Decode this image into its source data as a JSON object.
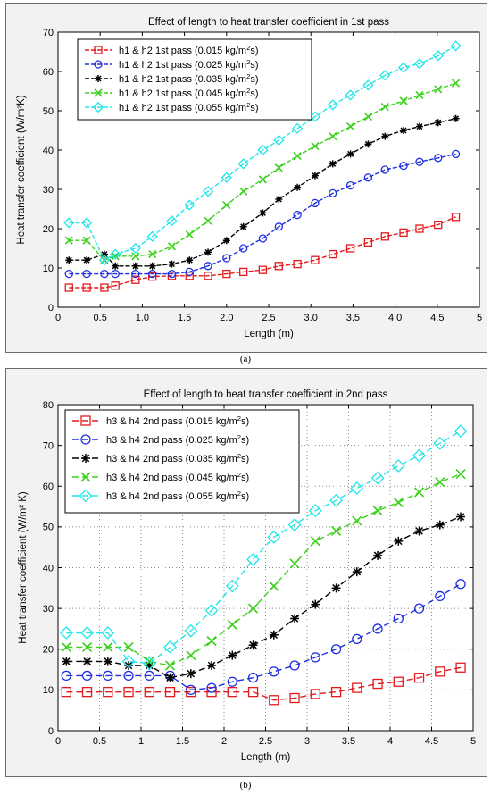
{
  "chart_data": [
    {
      "type": "line",
      "title": "Effect of length to heat transfer coefficient in 1st pass",
      "xlabel": "Length (m)",
      "ylabel": "Heat transfer coefficient (W/m²K)",
      "xlim": [
        0,
        5
      ],
      "ylim": [
        0,
        70
      ],
      "xticks": [
        "0",
        "0.5",
        "1.0",
        "1.5",
        "2.0",
        "2.5",
        "3.0",
        "3.5",
        "4.0",
        "4.5",
        "5"
      ],
      "xtick_values": [
        0,
        0.5,
        1.0,
        1.5,
        2.0,
        2.5,
        3.0,
        3.5,
        4.0,
        4.5,
        5
      ],
      "yticks": [
        0,
        10,
        20,
        30,
        40,
        50,
        60,
        70
      ],
      "grid": false,
      "legend_position": "top-left",
      "x": [
        0.13,
        0.34,
        0.55,
        0.68,
        0.92,
        1.12,
        1.35,
        1.56,
        1.78,
        2.0,
        2.2,
        2.43,
        2.62,
        2.84,
        3.05,
        3.26,
        3.47,
        3.68,
        3.88,
        4.1,
        4.29,
        4.51,
        4.72
      ],
      "series": [
        {
          "name": "h1 & h2 1st pass (0.015 kg/m²s)",
          "color": "#e41a1c",
          "marker": "square",
          "values": [
            5,
            5,
            5,
            5.5,
            7,
            7.8,
            8,
            8,
            8,
            8.5,
            9,
            9.5,
            10.5,
            11,
            12,
            13.5,
            15,
            16.5,
            18,
            19,
            20,
            21,
            23
          ]
        },
        {
          "name": "h1 & h2 1st pass (0.025 kg/m²s)",
          "color": "#1f2fe0",
          "marker": "circle",
          "values": [
            8.5,
            8.5,
            8.5,
            8.5,
            8.5,
            8.5,
            8.5,
            9,
            10.5,
            12.5,
            15,
            17.5,
            20.5,
            23.5,
            26.5,
            29,
            31,
            33,
            35,
            36,
            37,
            38,
            39
          ]
        },
        {
          "name": "h1 & h2 1st pass (0.035 kg/m²s)",
          "color": "#000000",
          "marker": "asterisk",
          "values": [
            12,
            12,
            13.5,
            10.5,
            10.5,
            10.5,
            11,
            12,
            14,
            17,
            20.5,
            24,
            27.5,
            30.5,
            33.5,
            36.5,
            39,
            41.5,
            43.5,
            45,
            46,
            47,
            48
          ]
        },
        {
          "name": "h1 & h2 1st pass (0.045 kg/m²s)",
          "color": "#3ad11c",
          "marker": "x",
          "values": [
            17,
            17,
            12,
            13,
            13,
            13.5,
            15.5,
            18.5,
            22,
            26,
            29.5,
            32.5,
            35.5,
            38.5,
            41,
            43.5,
            46,
            48.5,
            51,
            52.5,
            54,
            55.5,
            57
          ]
        },
        {
          "name": "h1 & h2 1st pass (0.055 kg/m²s)",
          "color": "#22e5e8",
          "marker": "diamond",
          "values": [
            21.5,
            21.5,
            12,
            13.5,
            15,
            18,
            22,
            26,
            29.5,
            33,
            36.5,
            40,
            42.5,
            45.5,
            48.5,
            51.5,
            54,
            56.5,
            59,
            61,
            62,
            64,
            66.5
          ]
        }
      ]
    },
    {
      "type": "line",
      "title": "Effect of length to heat transfer coefficient in 2nd pass",
      "xlabel": "Length (m)",
      "ylabel": "Heat transfer coefficient (W/m² K)",
      "xlim": [
        0,
        5
      ],
      "ylim": [
        0,
        80
      ],
      "xticks": [
        "0",
        "0.5",
        "1",
        "1.5",
        "2",
        "2.5",
        "3",
        "3.5",
        "4",
        "4.5",
        "5"
      ],
      "xtick_values": [
        0,
        0.5,
        1,
        1.5,
        2,
        2.5,
        3,
        3.5,
        4,
        4.5,
        5
      ],
      "yticks": [
        0,
        10,
        20,
        30,
        40,
        50,
        60,
        70,
        80
      ],
      "grid": true,
      "legend_position": "top-left",
      "x": [
        0.1,
        0.35,
        0.6,
        0.85,
        1.1,
        1.35,
        1.6,
        1.85,
        2.1,
        2.35,
        2.6,
        2.85,
        3.1,
        3.35,
        3.6,
        3.85,
        4.1,
        4.35,
        4.6,
        4.85
      ],
      "series": [
        {
          "name": "h3 & h4 2nd pass (0.015 kg/m²s)",
          "color": "#e41a1c",
          "marker": "square",
          "values": [
            9.5,
            9.5,
            9.5,
            9.5,
            9.5,
            9.5,
            9.5,
            9.5,
            9.5,
            9.5,
            7.5,
            8,
            9,
            9.5,
            10.5,
            11.5,
            12,
            13,
            14.5,
            15.5
          ]
        },
        {
          "name": "h3 & h4 2nd pass (0.025 kg/m²s)",
          "color": "#1f2fe0",
          "marker": "circle",
          "values": [
            13.5,
            13.5,
            13.5,
            13.5,
            13.5,
            13.5,
            10,
            10.5,
            12,
            13,
            14.5,
            16,
            18,
            20,
            22.5,
            25,
            27.5,
            30,
            33,
            36
          ]
        },
        {
          "name": "h3 & h4 2nd pass (0.035 kg/m²s)",
          "color": "#000000",
          "marker": "asterisk",
          "values": [
            17,
            17,
            17,
            16,
            16,
            13,
            14,
            16,
            18.5,
            21,
            23.5,
            27.5,
            31,
            35,
            39,
            43,
            46.5,
            49,
            50.5,
            52.5
          ]
        },
        {
          "name": "h3 & h4 2nd pass (0.045 kg/m²s)",
          "color": "#3ad11c",
          "marker": "x",
          "values": [
            20.5,
            20.5,
            20.5,
            20.5,
            17,
            16,
            18.5,
            22,
            26,
            30,
            35.5,
            41,
            46.5,
            49,
            51.5,
            54,
            56,
            58.5,
            61,
            63
          ]
        },
        {
          "name": "h3 & h4 2nd pass (0.055 kg/m²s)",
          "color": "#22e5e8",
          "marker": "diamond",
          "values": [
            24,
            24,
            24,
            17,
            16.5,
            20.5,
            24.5,
            29.5,
            35.5,
            42,
            47.5,
            50.5,
            54,
            56.5,
            59.5,
            62,
            65,
            67.5,
            70.5,
            73.5
          ]
        }
      ]
    }
  ],
  "captions": [
    "(a)",
    "(b)"
  ]
}
